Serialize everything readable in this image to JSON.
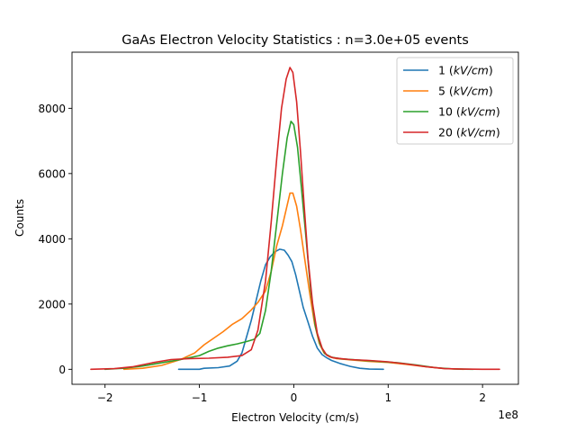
{
  "chart_data": {
    "type": "line",
    "title": "GaAs Electron Velocity Statistics : n=3.0e+05 events",
    "xlabel": "Electron Velocity (cm/s)",
    "ylabel": "Counts",
    "x_offset_label": "1e8",
    "xlim": [
      -2.35,
      2.38
    ],
    "ylim": [
      -460,
      9720
    ],
    "x_ticks": [
      {
        "value": -2,
        "label": "−2"
      },
      {
        "value": -1,
        "label": "−1"
      },
      {
        "value": 0,
        "label": "0"
      },
      {
        "value": 1,
        "label": "1"
      },
      {
        "value": 2,
        "label": "2"
      }
    ],
    "y_ticks": [
      {
        "value": 0,
        "label": "0"
      },
      {
        "value": 2000,
        "label": "2000"
      },
      {
        "value": 4000,
        "label": "4000"
      },
      {
        "value": 6000,
        "label": "6000"
      },
      {
        "value": 8000,
        "label": "8000"
      }
    ],
    "grid": false,
    "legend_position": "top-right",
    "series": [
      {
        "name": "1 (kV/cm)",
        "color": "#1f77b4",
        "points": [
          [
            -1.22,
            0
          ],
          [
            -1.0,
            0
          ],
          [
            -0.95,
            30
          ],
          [
            -0.8,
            50
          ],
          [
            -0.68,
            100
          ],
          [
            -0.6,
            250
          ],
          [
            -0.55,
            500
          ],
          [
            -0.5,
            1000
          ],
          [
            -0.45,
            1500
          ],
          [
            -0.4,
            2100
          ],
          [
            -0.35,
            2700
          ],
          [
            -0.3,
            3200
          ],
          [
            -0.25,
            3450
          ],
          [
            -0.2,
            3600
          ],
          [
            -0.15,
            3680
          ],
          [
            -0.1,
            3650
          ],
          [
            -0.06,
            3500
          ],
          [
            -0.02,
            3300
          ],
          [
            0.02,
            2900
          ],
          [
            0.06,
            2400
          ],
          [
            0.1,
            1900
          ],
          [
            0.15,
            1450
          ],
          [
            0.2,
            1000
          ],
          [
            0.25,
            650
          ],
          [
            0.3,
            450
          ],
          [
            0.35,
            350
          ],
          [
            0.4,
            270
          ],
          [
            0.5,
            170
          ],
          [
            0.6,
            90
          ],
          [
            0.7,
            30
          ],
          [
            0.8,
            5
          ],
          [
            0.95,
            0
          ]
        ]
      },
      {
        "name": "5 (kV/cm)",
        "color": "#ff7f0e",
        "points": [
          [
            -1.8,
            0
          ],
          [
            -1.6,
            30
          ],
          [
            -1.4,
            120
          ],
          [
            -1.2,
            300
          ],
          [
            -1.05,
            500
          ],
          [
            -0.95,
            750
          ],
          [
            -0.85,
            950
          ],
          [
            -0.75,
            1150
          ],
          [
            -0.65,
            1380
          ],
          [
            -0.55,
            1550
          ],
          [
            -0.45,
            1820
          ],
          [
            -0.38,
            2050
          ],
          [
            -0.3,
            2400
          ],
          [
            -0.24,
            3000
          ],
          [
            -0.18,
            3800
          ],
          [
            -0.12,
            4400
          ],
          [
            -0.08,
            4900
          ],
          [
            -0.04,
            5400
          ],
          [
            -0.01,
            5400
          ],
          [
            0.03,
            5000
          ],
          [
            0.07,
            4300
          ],
          [
            0.12,
            3300
          ],
          [
            0.17,
            2300
          ],
          [
            0.22,
            1400
          ],
          [
            0.27,
            800
          ],
          [
            0.32,
            500
          ],
          [
            0.38,
            380
          ],
          [
            0.45,
            330
          ],
          [
            0.6,
            290
          ],
          [
            0.8,
            240
          ],
          [
            1.0,
            210
          ],
          [
            1.2,
            150
          ],
          [
            1.4,
            80
          ],
          [
            1.6,
            20
          ],
          [
            1.8,
            0
          ]
        ]
      },
      {
        "name": "10 (kV/cm)",
        "color": "#2ca02c",
        "points": [
          [
            -2.0,
            0
          ],
          [
            -1.8,
            30
          ],
          [
            -1.6,
            100
          ],
          [
            -1.4,
            200
          ],
          [
            -1.2,
            300
          ],
          [
            -1.0,
            420
          ],
          [
            -0.9,
            550
          ],
          [
            -0.8,
            650
          ],
          [
            -0.7,
            720
          ],
          [
            -0.6,
            780
          ],
          [
            -0.5,
            850
          ],
          [
            -0.42,
            920
          ],
          [
            -0.36,
            1100
          ],
          [
            -0.3,
            1800
          ],
          [
            -0.24,
            3000
          ],
          [
            -0.18,
            4500
          ],
          [
            -0.12,
            6000
          ],
          [
            -0.07,
            7100
          ],
          [
            -0.03,
            7600
          ],
          [
            0.0,
            7500
          ],
          [
            0.04,
            6800
          ],
          [
            0.08,
            5600
          ],
          [
            0.13,
            4000
          ],
          [
            0.18,
            2400
          ],
          [
            0.23,
            1300
          ],
          [
            0.28,
            750
          ],
          [
            0.33,
            480
          ],
          [
            0.4,
            370
          ],
          [
            0.5,
            320
          ],
          [
            0.7,
            280
          ],
          [
            0.9,
            240
          ],
          [
            1.1,
            200
          ],
          [
            1.3,
            130
          ],
          [
            1.5,
            50
          ],
          [
            1.7,
            10
          ],
          [
            1.9,
            0
          ]
        ]
      },
      {
        "name": "20 (kV/cm)",
        "color": "#d62728",
        "points": [
          [
            -2.15,
            0
          ],
          [
            -1.9,
            20
          ],
          [
            -1.7,
            80
          ],
          [
            -1.5,
            200
          ],
          [
            -1.3,
            300
          ],
          [
            -1.1,
            330
          ],
          [
            -0.9,
            340
          ],
          [
            -0.7,
            370
          ],
          [
            -0.55,
            420
          ],
          [
            -0.45,
            600
          ],
          [
            -0.38,
            1200
          ],
          [
            -0.3,
            2700
          ],
          [
            -0.24,
            4500
          ],
          [
            -0.18,
            6500
          ],
          [
            -0.13,
            8000
          ],
          [
            -0.08,
            8900
          ],
          [
            -0.04,
            9250
          ],
          [
            -0.01,
            9100
          ],
          [
            0.03,
            8200
          ],
          [
            0.07,
            6700
          ],
          [
            0.11,
            5000
          ],
          [
            0.15,
            3400
          ],
          [
            0.2,
            2000
          ],
          [
            0.25,
            1100
          ],
          [
            0.3,
            650
          ],
          [
            0.35,
            430
          ],
          [
            0.42,
            350
          ],
          [
            0.6,
            300
          ],
          [
            0.8,
            270
          ],
          [
            1.0,
            230
          ],
          [
            1.2,
            160
          ],
          [
            1.4,
            80
          ],
          [
            1.6,
            20
          ],
          [
            1.8,
            5
          ],
          [
            2.0,
            0
          ],
          [
            2.18,
            0
          ]
        ]
      }
    ]
  }
}
